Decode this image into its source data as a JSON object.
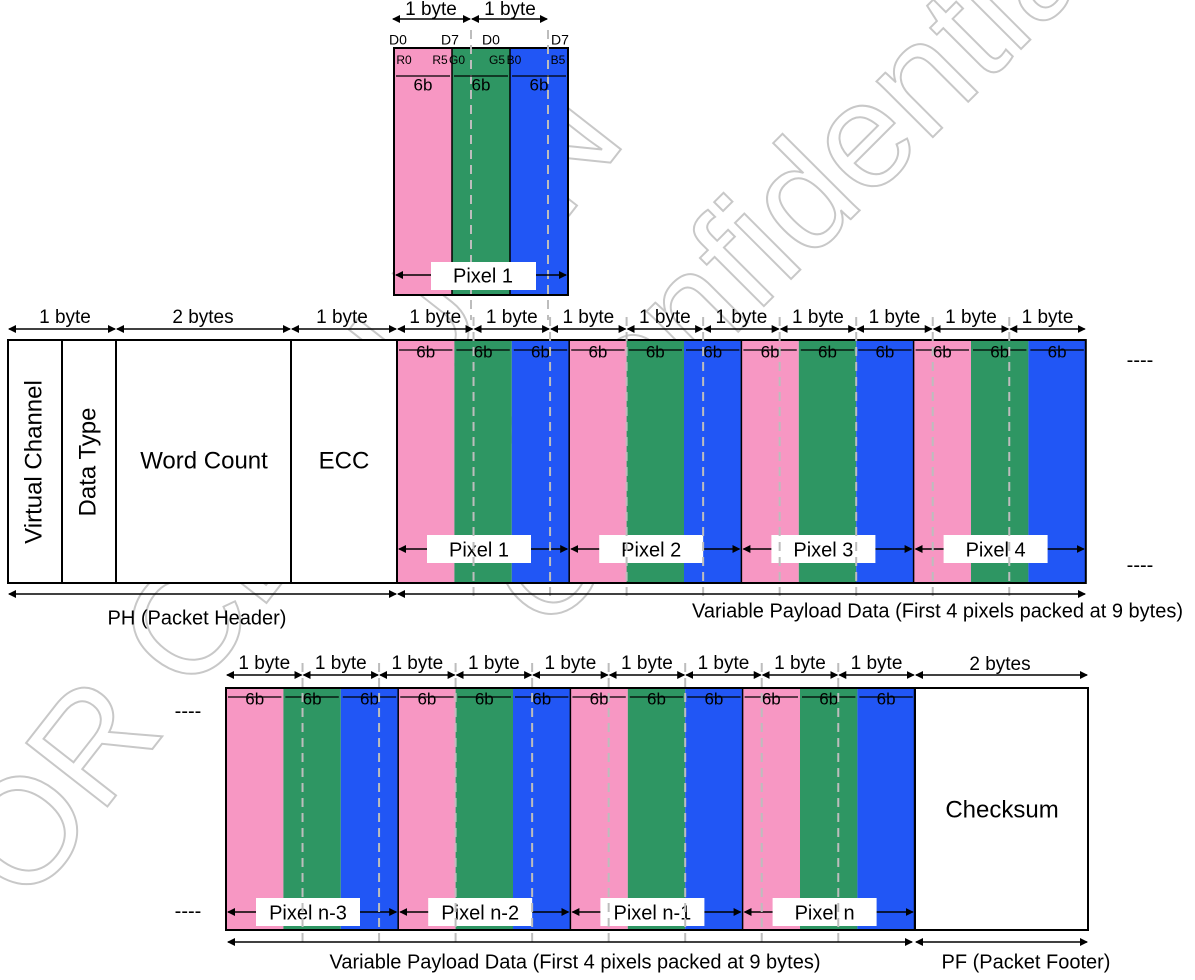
{
  "colors": {
    "red": "#f797c3",
    "green": "#2e9663",
    "blue": "#2156f5",
    "outline": "#000000",
    "dashed_line": "#bdbdbd",
    "watermark": "#c8c8c8"
  },
  "watermark": {
    "line1": "FOR CELLUON",
    "line2": "Confidential",
    "line3": "Only"
  },
  "pixel_detail": {
    "byte_labels": [
      "1 byte",
      "1 byte"
    ],
    "bit_markers": [
      "D0",
      "D7",
      "D0",
      "D7"
    ],
    "subfield_labels": [
      "R0",
      "R5",
      "G0",
      "G5",
      "B0",
      "B5"
    ],
    "segment_label": "6b",
    "pixel_label": "Pixel 1"
  },
  "header": {
    "byte_labels": [
      "1 byte",
      "2 bytes",
      "1 byte"
    ],
    "fields": [
      "Virtual Channel",
      "Data Type",
      "Word Count",
      "ECC"
    ],
    "caption": "PH (Packet Header)"
  },
  "payload_top": {
    "byte_labels": [
      "1 byte",
      "1 byte",
      "1 byte",
      "1 byte",
      "1 byte",
      "1 byte",
      "1 byte",
      "1 byte",
      "1 byte"
    ],
    "segment_label": "6b",
    "pixel_labels": [
      "Pixel 1",
      "Pixel 2",
      "Pixel 3",
      "Pixel 4"
    ],
    "continuation": "----",
    "caption": "Variable Payload Data (First 4 pixels packed at 9 bytes)"
  },
  "payload_bottom": {
    "byte_labels": [
      "1 byte",
      "1 byte",
      "1 byte",
      "1 byte",
      "1 byte",
      "1 byte",
      "1 byte",
      "1 byte",
      "1 byte"
    ],
    "segment_label": "6b",
    "pixel_labels": [
      "Pixel n-3",
      "Pixel n-2",
      "Pixel n-1",
      "Pixel n"
    ],
    "continuation": "----",
    "caption": "Variable Payload Data (First 4 pixels packed at 9 bytes)"
  },
  "footer": {
    "byte_label": "2 bytes",
    "field": "Checksum",
    "caption": "PF (Packet Footer)"
  }
}
